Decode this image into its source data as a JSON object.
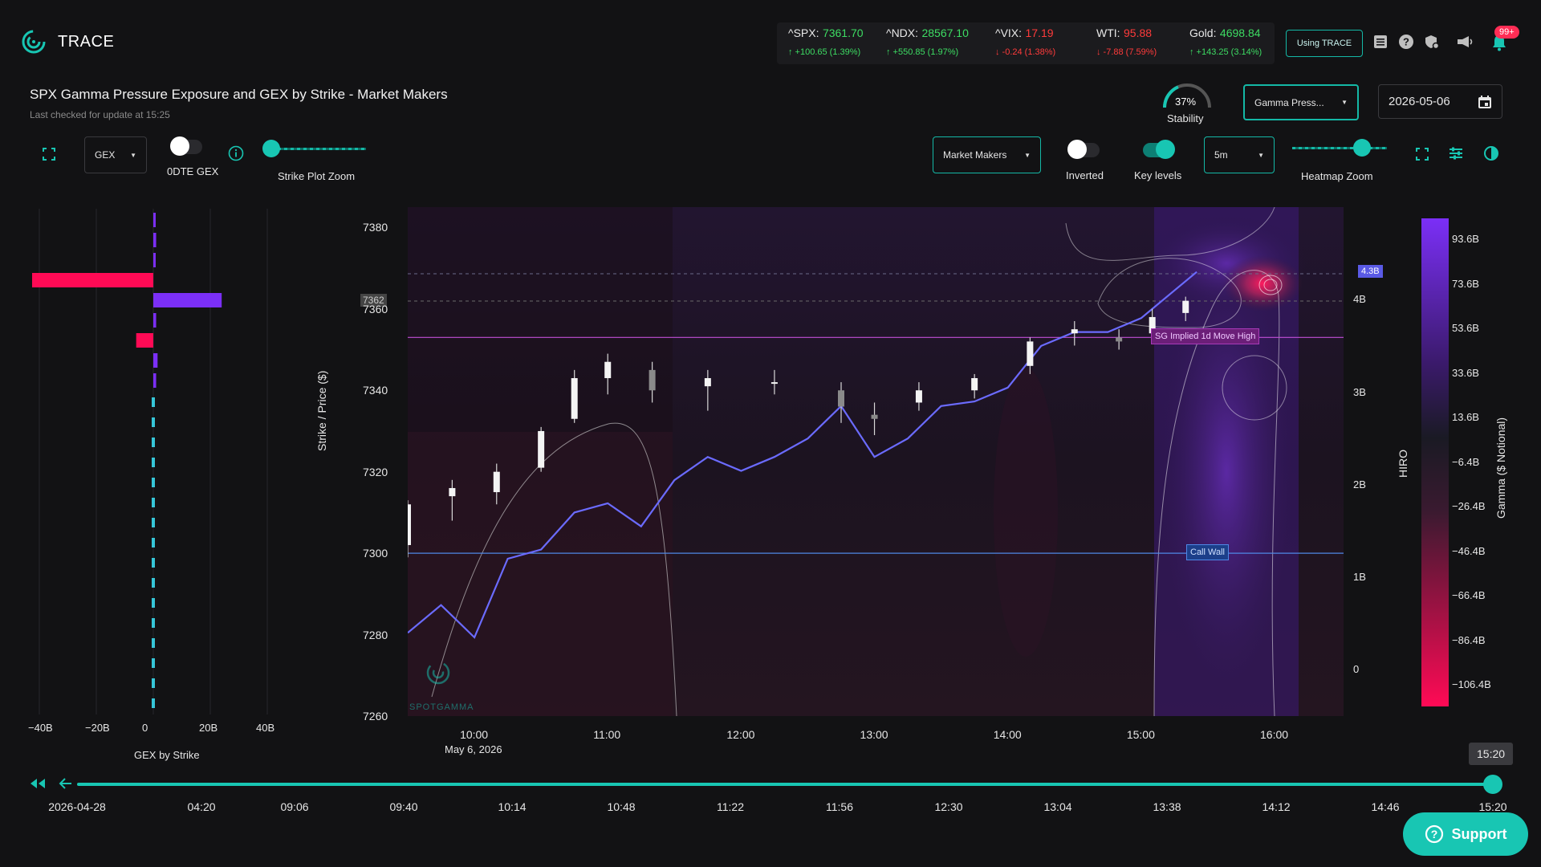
{
  "app": {
    "name": "TRACE"
  },
  "tickers": [
    {
      "name": "^SPX:",
      "value": "7361.70",
      "change": "↑ +100.65 (1.39%)",
      "dir": "up"
    },
    {
      "name": "^NDX:",
      "value": "28567.10",
      "change": "↑ +550.85 (1.97%)",
      "dir": "up"
    },
    {
      "name": "^VIX:",
      "value": "17.19",
      "change": "↓ -0.24 (1.38%)",
      "dir": "dn"
    },
    {
      "name": "WTI:",
      "value": "95.88",
      "change": "↓ -7.88 (7.59%)",
      "dir": "dn"
    },
    {
      "name": "Gold:",
      "value": "4698.84",
      "change": "↑ +143.25 (3.14%)",
      "dir": "up"
    }
  ],
  "header": {
    "using_trace": "Using TRACE",
    "notifications": "99+"
  },
  "page": {
    "title": "SPX Gamma Pressure Exposure and GEX by Strike - Market Makers",
    "subtitle": "Last checked for update at 15:25"
  },
  "stability": {
    "value": "37%",
    "label": "Stability",
    "fraction": 0.37
  },
  "controls": {
    "chart_type": "Gamma Press...",
    "date": "2026-05-06",
    "gex_select": "GEX",
    "odte_label": "0DTE GEX",
    "strike_zoom_label": "Strike Plot Zoom",
    "participant": "Market Makers",
    "inverted_label": "Inverted",
    "key_levels_label": "Key levels",
    "interval": "5m",
    "heatmap_zoom_label": "Heatmap Zoom"
  },
  "gex_chart": {
    "xticks": [
      "−40B",
      "−20B",
      "0",
      "20B",
      "40B"
    ],
    "xlabel": "GEX by Strike"
  },
  "main_chart": {
    "ylabel": "Strike / Price ($)",
    "yticks": [
      "7380",
      "7360",
      "7340",
      "7320",
      "7300",
      "7280",
      "7260"
    ],
    "price_tag": "7362",
    "xticks": [
      "10:00",
      "11:00",
      "12:00",
      "13:00",
      "14:00",
      "15:00",
      "16:00"
    ],
    "date_label": "May 6, 2026",
    "hiro_label": "HIRO",
    "hiro_ticks": [
      "4B",
      "3B",
      "2B",
      "1B",
      "0"
    ],
    "hiro_tag": "4.3B",
    "sg_label": "SG Implied 1d Move High",
    "call_wall_label": "Call Wall",
    "watermark": "SPOTGAMMA"
  },
  "colorbar": {
    "label": "Gamma ($ Notional)",
    "ticks": [
      "93.6B",
      "73.6B",
      "53.6B",
      "33.6B",
      "13.6B",
      "−6.4B",
      "−26.4B",
      "−46.4B",
      "−66.4B",
      "−86.4B",
      "−106.4B"
    ],
    "colors": [
      "#7b2ff7",
      "#1a1a24",
      "#ff0a55"
    ]
  },
  "timeline": {
    "current": "15:20",
    "labels": [
      "2026-04-28",
      "04:20",
      "09:06",
      "09:40",
      "10:14",
      "10:48",
      "11:22",
      "11:56",
      "12:30",
      "13:04",
      "13:38",
      "14:12",
      "14:46",
      "15:20"
    ]
  },
  "support": {
    "label": "Support"
  },
  "chart_data": {
    "type": "line",
    "xlabel": "",
    "ylabel": "Strike / Price ($)",
    "ylim": [
      7260,
      7385
    ],
    "xlim_time": [
      "09:30",
      "16:00"
    ],
    "price_candles_close": [
      {
        "t": "09:30",
        "o": 7302,
        "h": 7313,
        "l": 7299,
        "c": 7312
      },
      {
        "t": "09:50",
        "o": 7314,
        "h": 7318,
        "l": 7308,
        "c": 7316
      },
      {
        "t": "10:10",
        "o": 7315,
        "h": 7322,
        "l": 7312,
        "c": 7320
      },
      {
        "t": "10:30",
        "o": 7321,
        "h": 7331,
        "l": 7320,
        "c": 7330
      },
      {
        "t": "10:45",
        "o": 7333,
        "h": 7345,
        "l": 7332,
        "c": 7343
      },
      {
        "t": "11:00",
        "o": 7343,
        "h": 7349,
        "l": 7339,
        "c": 7347
      },
      {
        "t": "11:20",
        "o": 7345,
        "h": 7347,
        "l": 7337,
        "c": 7340
      },
      {
        "t": "11:45",
        "o": 7341,
        "h": 7345,
        "l": 7335,
        "c": 7343
      },
      {
        "t": "12:15",
        "o": 7342,
        "h": 7345,
        "l": 7339,
        "c": 7342
      },
      {
        "t": "12:45",
        "o": 7340,
        "h": 7342,
        "l": 7332,
        "c": 7336
      },
      {
        "t": "13:00",
        "o": 7334,
        "h": 7337,
        "l": 7329,
        "c": 7333
      },
      {
        "t": "13:20",
        "o": 7337,
        "h": 7342,
        "l": 7335,
        "c": 7340
      },
      {
        "t": "13:45",
        "o": 7340,
        "h": 7344,
        "l": 7338,
        "c": 7343
      },
      {
        "t": "14:10",
        "o": 7346,
        "h": 7353,
        "l": 7344,
        "c": 7352
      },
      {
        "t": "14:30",
        "o": 7354,
        "h": 7357,
        "l": 7351,
        "c": 7355
      },
      {
        "t": "14:50",
        "o": 7353,
        "h": 7355,
        "l": 7350,
        "c": 7352
      },
      {
        "t": "15:05",
        "o": 7354,
        "h": 7360,
        "l": 7353,
        "c": 7358
      },
      {
        "t": "15:20",
        "o": 7359,
        "h": 7363,
        "l": 7357,
        "c": 7362
      }
    ],
    "hiro_series": {
      "ylim": [
        -0.5,
        5.0
      ],
      "x": [
        "09:30",
        "09:45",
        "10:00",
        "10:15",
        "10:30",
        "10:45",
        "11:00",
        "11:15",
        "11:30",
        "11:45",
        "12:00",
        "12:15",
        "12:30",
        "12:45",
        "13:00",
        "13:15",
        "13:30",
        "13:45",
        "14:00",
        "14:15",
        "14:30",
        "14:45",
        "15:00",
        "15:15",
        "15:25"
      ],
      "values": [
        0.4,
        0.7,
        0.35,
        1.2,
        1.3,
        1.7,
        1.8,
        1.55,
        2.05,
        2.3,
        2.15,
        2.3,
        2.5,
        2.85,
        2.3,
        2.5,
        2.85,
        2.9,
        3.05,
        3.5,
        3.65,
        3.65,
        3.8,
        4.1,
        4.3
      ]
    },
    "key_levels": [
      {
        "name": "SG Implied 1d Move High",
        "value": 7353
      },
      {
        "name": "Call Wall",
        "value": 7300
      }
    ],
    "gex_by_strike": {
      "strikes": [
        7380,
        7375,
        7370,
        7365,
        7360,
        7355,
        7350,
        7345,
        7340
      ],
      "values_B": [
        0.5,
        1,
        0.5,
        -45,
        24,
        1,
        -6,
        1.5,
        1
      ]
    }
  }
}
